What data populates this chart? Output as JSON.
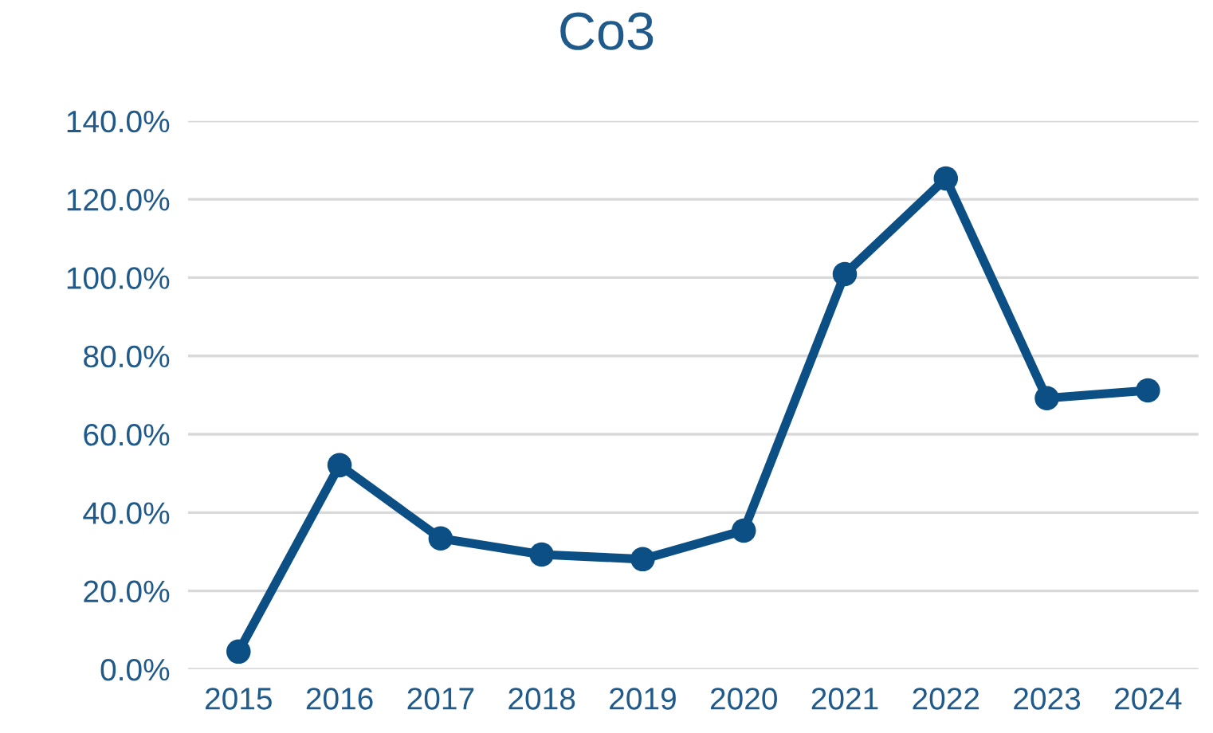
{
  "chart_data": {
    "type": "line",
    "title": "Co3",
    "categories": [
      "2015",
      "2016",
      "2017",
      "2018",
      "2019",
      "2020",
      "2021",
      "2022",
      "2023",
      "2024"
    ],
    "series": [
      {
        "color": "#0b4f84",
        "values": [
          4.5,
          52.1,
          33.4,
          29.3,
          28.1,
          35.4,
          100.9,
          125.3,
          69.2,
          71.2
        ]
      }
    ],
    "ylim": [
      0,
      140
    ],
    "yticks": [
      {
        "value": 0,
        "label": "0.0%"
      },
      {
        "value": 20,
        "label": "20.0%"
      },
      {
        "value": 40,
        "label": "40.0%"
      },
      {
        "value": 60,
        "label": "60.0%"
      },
      {
        "value": 80,
        "label": "80.0%"
      },
      {
        "value": 100,
        "label": "100.0%"
      },
      {
        "value": 120,
        "label": "120.0%"
      },
      {
        "value": 140,
        "label": "140.0%"
      }
    ],
    "grid": "y",
    "marker": "circle",
    "line_style": "solid"
  }
}
